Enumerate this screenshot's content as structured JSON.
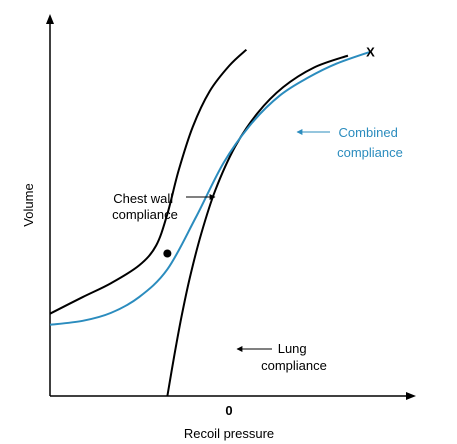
{
  "chart_data": {
    "type": "line",
    "title": "",
    "xlabel": "Recoil pressure",
    "ylabel": "Volume",
    "x_ticks": [
      "0"
    ],
    "grid": false,
    "legend": "none",
    "series": [
      {
        "name": "Chest wall compliance",
        "color": "#000000",
        "x": [
          -2.08,
          -1.5,
          -1.0,
          -0.5,
          -0.2,
          0.0,
          0.2,
          0.45,
          0.75,
          1.1,
          1.4
        ],
        "y": [
          2.08,
          2.5,
          2.85,
          3.3,
          3.8,
          4.6,
          5.7,
          6.8,
          7.7,
          8.35,
          8.75
        ]
      },
      {
        "name": "Lung compliance",
        "color": "#000000",
        "x": [
          0.0,
          0.12,
          0.25,
          0.4,
          0.6,
          0.85,
          1.2,
          1.6,
          2.05,
          2.6,
          3.2
        ],
        "y": [
          0.0,
          1.0,
          2.0,
          3.0,
          4.1,
          5.2,
          6.3,
          7.15,
          7.8,
          8.3,
          8.6
        ]
      },
      {
        "name": "Combined compliance",
        "color": "#2b8cbe",
        "x": [
          -2.08,
          -1.5,
          -1.0,
          -0.5,
          0.0,
          0.5,
          1.0,
          1.5,
          2.0,
          2.5,
          3.0,
          3.6
        ],
        "y": [
          1.8,
          1.9,
          2.1,
          2.5,
          3.2,
          4.5,
          5.9,
          6.9,
          7.6,
          8.05,
          8.4,
          8.7
        ]
      }
    ],
    "points": [
      {
        "x": 0.0,
        "y": 3.6,
        "label": ""
      }
    ],
    "end_marker": {
      "text": "X",
      "x": 3.6,
      "y": 8.7
    },
    "annotations": [
      {
        "text": "Chest wall\ncompliance",
        "target_series": "Chest wall compliance"
      },
      {
        "text": "Combined\ncompliance",
        "target_series": "Combined compliance"
      },
      {
        "text": "Lung\ncompliance",
        "target_series": "Lung compliance"
      }
    ],
    "xlim": [
      -2.08,
      4.3
    ],
    "ylim": [
      0,
      9.5
    ]
  },
  "colors": {
    "axis": "#000000",
    "curve_black": "#000000",
    "curve_blue": "#2b8cbe",
    "text": "#000000",
    "text_blue": "#2b8cbe"
  }
}
